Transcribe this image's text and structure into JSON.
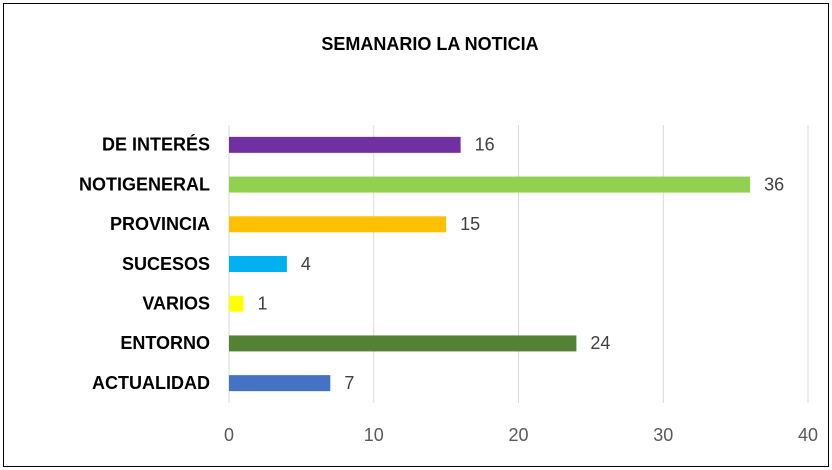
{
  "chart_data": {
    "type": "bar",
    "orientation": "horizontal",
    "title": "SEMANARIO  LA NOTICIA",
    "categories": [
      "DE INTERÉS",
      "NOTIGENERAL",
      "PROVINCIA",
      "SUCESOS",
      "VARIOS",
      "ENTORNO",
      "ACTUALIDAD"
    ],
    "values": [
      16,
      36,
      15,
      4,
      1,
      24,
      7
    ],
    "colors": [
      "#7030a0",
      "#92d050",
      "#ffc000",
      "#00b0f0",
      "#ffff00",
      "#548235",
      "#4472c4"
    ],
    "xlim": [
      0,
      40
    ],
    "xticks": [
      0,
      10,
      20,
      30,
      40
    ],
    "grid": true
  }
}
